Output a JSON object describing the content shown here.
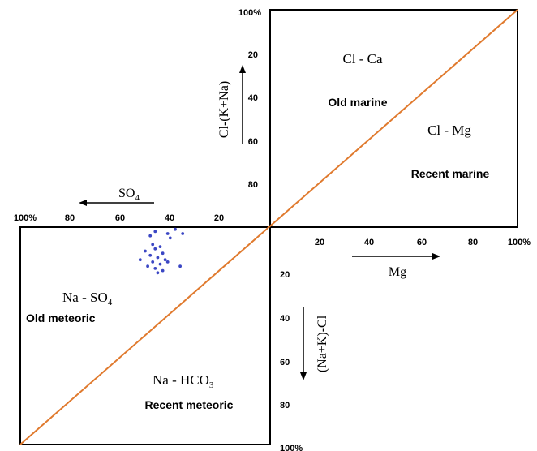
{
  "chart_data": {
    "type": "scatter",
    "diagram": "Sulin genetic classification",
    "colors": {
      "frame": "#000000",
      "diagonal": "#e07a2e",
      "points": "#3b47c4"
    },
    "axes": {
      "top_vertical": {
        "label": "Cl-(K+Na)",
        "ticks": [
          "100%",
          "20",
          "40",
          "60",
          "80"
        ]
      },
      "left_horizontal": {
        "label_main": "SO",
        "label_sub": "4",
        "ticks": [
          "100%",
          "80",
          "60",
          "40",
          "20"
        ]
      },
      "right_horizontal": {
        "label": "Mg",
        "ticks": [
          "20",
          "40",
          "60",
          "80",
          "100%"
        ]
      },
      "bottom_vertical": {
        "label": "(Na+K)-Cl",
        "ticks": [
          "20",
          "40",
          "60",
          "80",
          "100%"
        ]
      }
    },
    "regions": {
      "cl_ca": "Cl - Ca",
      "old_marine": "Old marine",
      "cl_mg": "Cl - Mg",
      "recent_marine": "Recent marine",
      "na_so4_main": "Na - SO",
      "na_so4_sub": "4",
      "old_meteoric": "Old meteoric",
      "na_hco3_main": "Na - HCO",
      "na_hco3_sub": "3",
      "recent_meteoric": "Recent meteoric"
    },
    "points": [
      {
        "x": 46,
        "y": 2
      },
      {
        "x": 41,
        "y": 3
      },
      {
        "x": 38,
        "y": 1
      },
      {
        "x": 35,
        "y": 3
      },
      {
        "x": 48,
        "y": 4
      },
      {
        "x": 40,
        "y": 5
      },
      {
        "x": 47,
        "y": 8
      },
      {
        "x": 44,
        "y": 9
      },
      {
        "x": 46,
        "y": 10
      },
      {
        "x": 50,
        "y": 11
      },
      {
        "x": 43,
        "y": 12
      },
      {
        "x": 48,
        "y": 13
      },
      {
        "x": 52,
        "y": 15
      },
      {
        "x": 45,
        "y": 14
      },
      {
        "x": 42,
        "y": 15
      },
      {
        "x": 47,
        "y": 16
      },
      {
        "x": 44,
        "y": 17
      },
      {
        "x": 41,
        "y": 16
      },
      {
        "x": 49,
        "y": 18
      },
      {
        "x": 36,
        "y": 18
      },
      {
        "x": 46,
        "y": 19
      },
      {
        "x": 43,
        "y": 20
      },
      {
        "x": 45,
        "y": 21
      }
    ]
  }
}
